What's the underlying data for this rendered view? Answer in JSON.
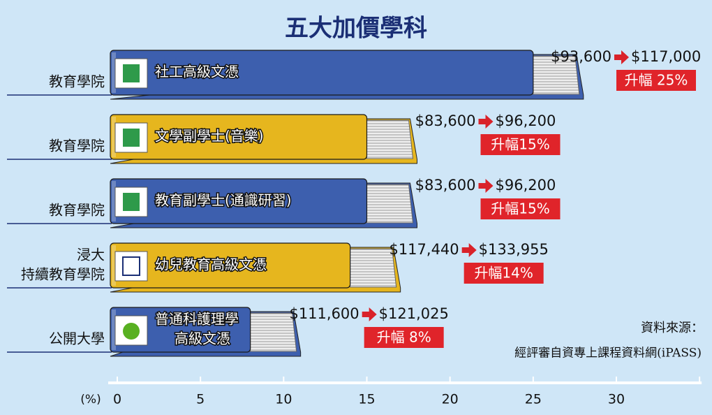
{
  "chart_data": {
    "type": "bar",
    "title": "五大加價學科",
    "categories": [
      [
        "教育學院"
      ],
      [
        "教育學院"
      ],
      [
        "教育學院"
      ],
      [
        "浸大",
        "持續教育學院"
      ],
      [
        "公開大學"
      ]
    ],
    "courses": [
      [
        "社工高級文憑"
      ],
      [
        "文學副學士(音樂)"
      ],
      [
        "教育副學士(通識研習)"
      ],
      [
        "幼兒教育高級文憑"
      ],
      [
        "普通科護理學",
        "高級文憑"
      ]
    ],
    "old_fees": [
      "$93,600",
      "$83,600",
      "$83,600",
      "$117,440",
      "$111,600"
    ],
    "new_fees": [
      "$117,000",
      "$96,200",
      "$96,200",
      "$133,955",
      "$121,025"
    ],
    "values": [
      25,
      15,
      15,
      14,
      8
    ],
    "value_labels": [
      "升幅 25%",
      "升幅15%",
      "升幅15%",
      "升幅14%",
      "升幅 8%"
    ],
    "colors": [
      "#3d5fae",
      "#e6b61e",
      "#3d5fae",
      "#e6b61e",
      "#3d5fae"
    ],
    "xlabel": "(%)",
    "xlim": [
      0,
      35
    ],
    "xticks": [
      0,
      5,
      10,
      15,
      20,
      25,
      30
    ],
    "source": [
      "資料來源：",
      "經評審自資專上課程資料網(iPASS)"
    ]
  }
}
